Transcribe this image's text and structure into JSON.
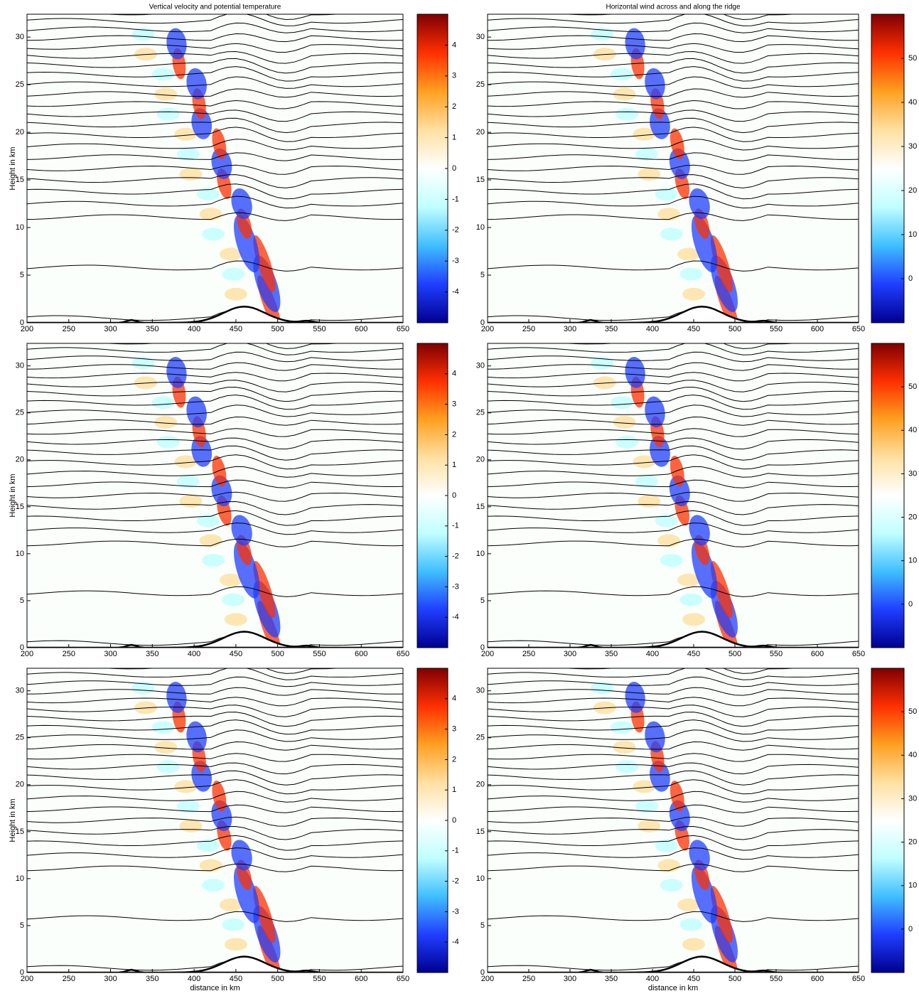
{
  "chart_data": [
    {
      "type": "contour",
      "title": "Vertical velocity and potential temperature",
      "ylabel": "Height in km",
      "xlim": [
        200,
        650
      ],
      "xticks": [
        200,
        250,
        300,
        350,
        400,
        450,
        500,
        550,
        600,
        650
      ],
      "ylim": [
        0,
        32.4
      ],
      "yticks": [
        0,
        5,
        10,
        15,
        20,
        25,
        30
      ],
      "colorbar": {
        "lim": [
          -5,
          5
        ],
        "ticks": [
          -4,
          -3,
          -2,
          -1,
          0,
          1,
          2,
          3,
          4
        ],
        "colormap": [
          "#00008f",
          "#1f3fff",
          "#3fbfff",
          "#bfffff",
          "#ffffff",
          "#ffe0a0",
          "#ffa020",
          "#ff3000",
          "#7f0000"
        ]
      }
    },
    {
      "type": "contour",
      "title": "Horizontal wind across and along the ridge",
      "xlim": [
        200,
        650
      ],
      "xticks": [
        200,
        250,
        300,
        350,
        400,
        450,
        500,
        550,
        600,
        650
      ],
      "ylim": [
        0,
        32.4
      ],
      "yticks": [
        0,
        5,
        10,
        15,
        20,
        25,
        30
      ],
      "colorbar": {
        "lim": [
          -10,
          60
        ],
        "ticks": [
          0,
          10,
          20,
          30,
          40,
          50
        ],
        "colormap": [
          "#00008f",
          "#1f3fff",
          "#3fbfff",
          "#bfffff",
          "#ffffff",
          "#ffe0a0",
          "#ffa020",
          "#ff3000",
          "#7f0000"
        ]
      }
    },
    {
      "type": "contour",
      "ylabel": "Height in km",
      "xlim": [
        200,
        650
      ],
      "xticks": [
        200,
        250,
        300,
        350,
        400,
        450,
        500,
        550,
        600,
        650
      ],
      "ylim": [
        0,
        32.4
      ],
      "yticks": [
        0,
        5,
        10,
        15,
        20,
        25,
        30
      ],
      "colorbar": {
        "lim": [
          -5,
          5
        ],
        "ticks": [
          -4,
          -3,
          -2,
          -1,
          0,
          1,
          2,
          3,
          4
        ],
        "colormap": [
          "#00008f",
          "#1f3fff",
          "#3fbfff",
          "#bfffff",
          "#ffffff",
          "#ffe0a0",
          "#ffa020",
          "#ff3000",
          "#7f0000"
        ]
      }
    },
    {
      "type": "contour",
      "xlim": [
        200,
        650
      ],
      "xticks": [
        200,
        250,
        300,
        350,
        400,
        450,
        500,
        550,
        600,
        650
      ],
      "ylim": [
        0,
        32.4
      ],
      "yticks": [
        0,
        5,
        10,
        15,
        20,
        25,
        30
      ],
      "colorbar": {
        "lim": [
          -10,
          60
        ],
        "ticks": [
          0,
          10,
          20,
          30,
          40,
          50
        ],
        "colormap": [
          "#00008f",
          "#1f3fff",
          "#3fbfff",
          "#bfffff",
          "#ffffff",
          "#ffe0a0",
          "#ffa020",
          "#ff3000",
          "#7f0000"
        ]
      }
    },
    {
      "type": "contour",
      "ylabel": "Height in km",
      "xlabel": "distance in km",
      "xlim": [
        200,
        650
      ],
      "xticks": [
        200,
        250,
        300,
        350,
        400,
        450,
        500,
        550,
        600,
        650
      ],
      "ylim": [
        0,
        32.4
      ],
      "yticks": [
        0,
        5,
        10,
        15,
        20,
        25,
        30
      ],
      "colorbar": {
        "lim": [
          -5,
          5
        ],
        "ticks": [
          -4,
          -3,
          -2,
          -1,
          0,
          1,
          2,
          3,
          4
        ],
        "colormap": [
          "#00008f",
          "#1f3fff",
          "#3fbfff",
          "#bfffff",
          "#ffffff",
          "#ffe0a0",
          "#ffa020",
          "#ff3000",
          "#7f0000"
        ]
      }
    },
    {
      "type": "contour",
      "xlabel": "distance in km",
      "xlim": [
        200,
        650
      ],
      "xticks": [
        200,
        250,
        300,
        350,
        400,
        450,
        500,
        550,
        600,
        650
      ],
      "ylim": [
        0,
        32.4
      ],
      "yticks": [
        0,
        5,
        10,
        15,
        20,
        25,
        30
      ],
      "colorbar": {
        "lim": [
          -10,
          60
        ],
        "ticks": [
          0,
          10,
          20,
          30,
          40,
          50
        ],
        "colormap": [
          "#00008f",
          "#1f3fff",
          "#3fbfff",
          "#bfffff",
          "#ffffff",
          "#ffe0a0",
          "#ffa020",
          "#ff3000",
          "#7f0000"
        ]
      }
    }
  ]
}
